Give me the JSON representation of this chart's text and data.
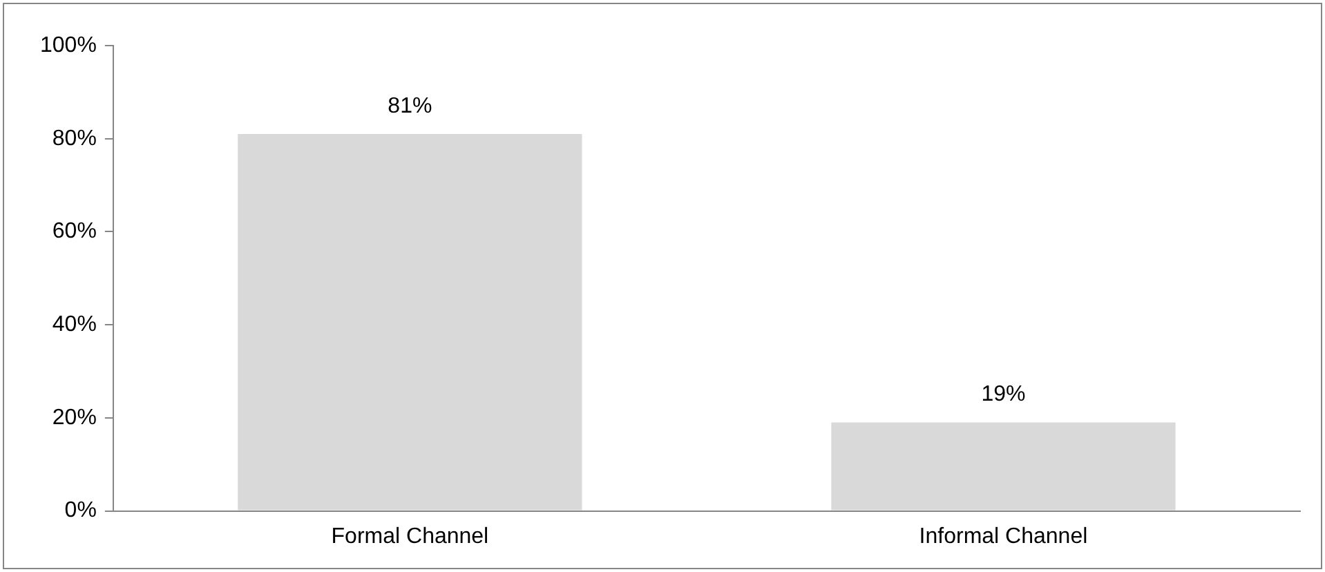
{
  "chart_data": {
    "type": "bar",
    "categories": [
      "Formal Channel",
      "Informal Channel"
    ],
    "values": [
      81,
      19
    ],
    "color": "#d9d9d9",
    "value_labels": [
      "81%",
      "19%"
    ],
    "ylim": [
      0,
      100
    ],
    "yticks": [
      {
        "value": 0,
        "label": "0%"
      },
      {
        "value": 20,
        "label": "20%"
      },
      {
        "value": 40,
        "label": "40%"
      },
      {
        "value": 60,
        "label": "60%"
      },
      {
        "value": 80,
        "label": "80%"
      },
      {
        "value": 100,
        "label": "100%"
      }
    ],
    "grid": false,
    "legend": false
  }
}
